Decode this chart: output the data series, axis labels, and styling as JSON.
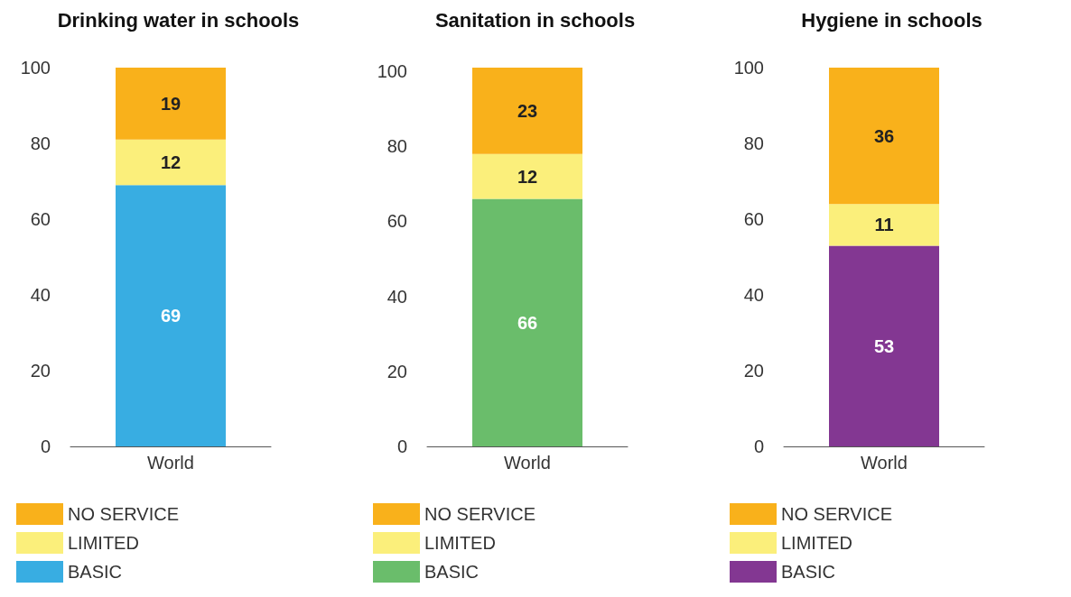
{
  "chart_data": [
    {
      "type": "bar",
      "title": "Drinking water in schools",
      "categories": [
        "World"
      ],
      "stacked": true,
      "data_labels": true,
      "legend": "bottom",
      "grid": false,
      "ylim": [
        0,
        100
      ],
      "yticks": [
        0,
        20,
        40,
        60,
        80,
        100
      ],
      "series": [
        {
          "name": "BASIC",
          "color": "#38ade2",
          "values": [
            69
          ]
        },
        {
          "name": "LIMITED",
          "color": "#fbef7b",
          "values": [
            12
          ]
        },
        {
          "name": "NO SERVICE",
          "color": "#f9b11b",
          "values": [
            19
          ]
        }
      ]
    },
    {
      "type": "bar",
      "title": "Sanitation in schools",
      "categories": [
        "World"
      ],
      "stacked": true,
      "data_labels": true,
      "legend": "bottom",
      "grid": false,
      "ylim": [
        0,
        101
      ],
      "yticks": [
        0,
        20,
        40,
        60,
        80,
        100
      ],
      "series": [
        {
          "name": "BASIC",
          "color": "#6abd6b",
          "values": [
            66
          ]
        },
        {
          "name": "LIMITED",
          "color": "#fbef7b",
          "values": [
            12
          ]
        },
        {
          "name": "NO SERVICE",
          "color": "#f9b11b",
          "values": [
            23
          ]
        }
      ]
    },
    {
      "type": "bar",
      "title": "Hygiene in schools",
      "categories": [
        "World"
      ],
      "stacked": true,
      "data_labels": true,
      "legend": "bottom",
      "grid": false,
      "ylim": [
        0,
        100
      ],
      "yticks": [
        0,
        20,
        40,
        60,
        80,
        100
      ],
      "series": [
        {
          "name": "BASIC",
          "color": "#833792",
          "values": [
            53
          ]
        },
        {
          "name": "LIMITED",
          "color": "#fbef7b",
          "values": [
            11
          ]
        },
        {
          "name": "NO SERVICE",
          "color": "#f9b11b",
          "values": [
            36
          ]
        }
      ]
    }
  ]
}
